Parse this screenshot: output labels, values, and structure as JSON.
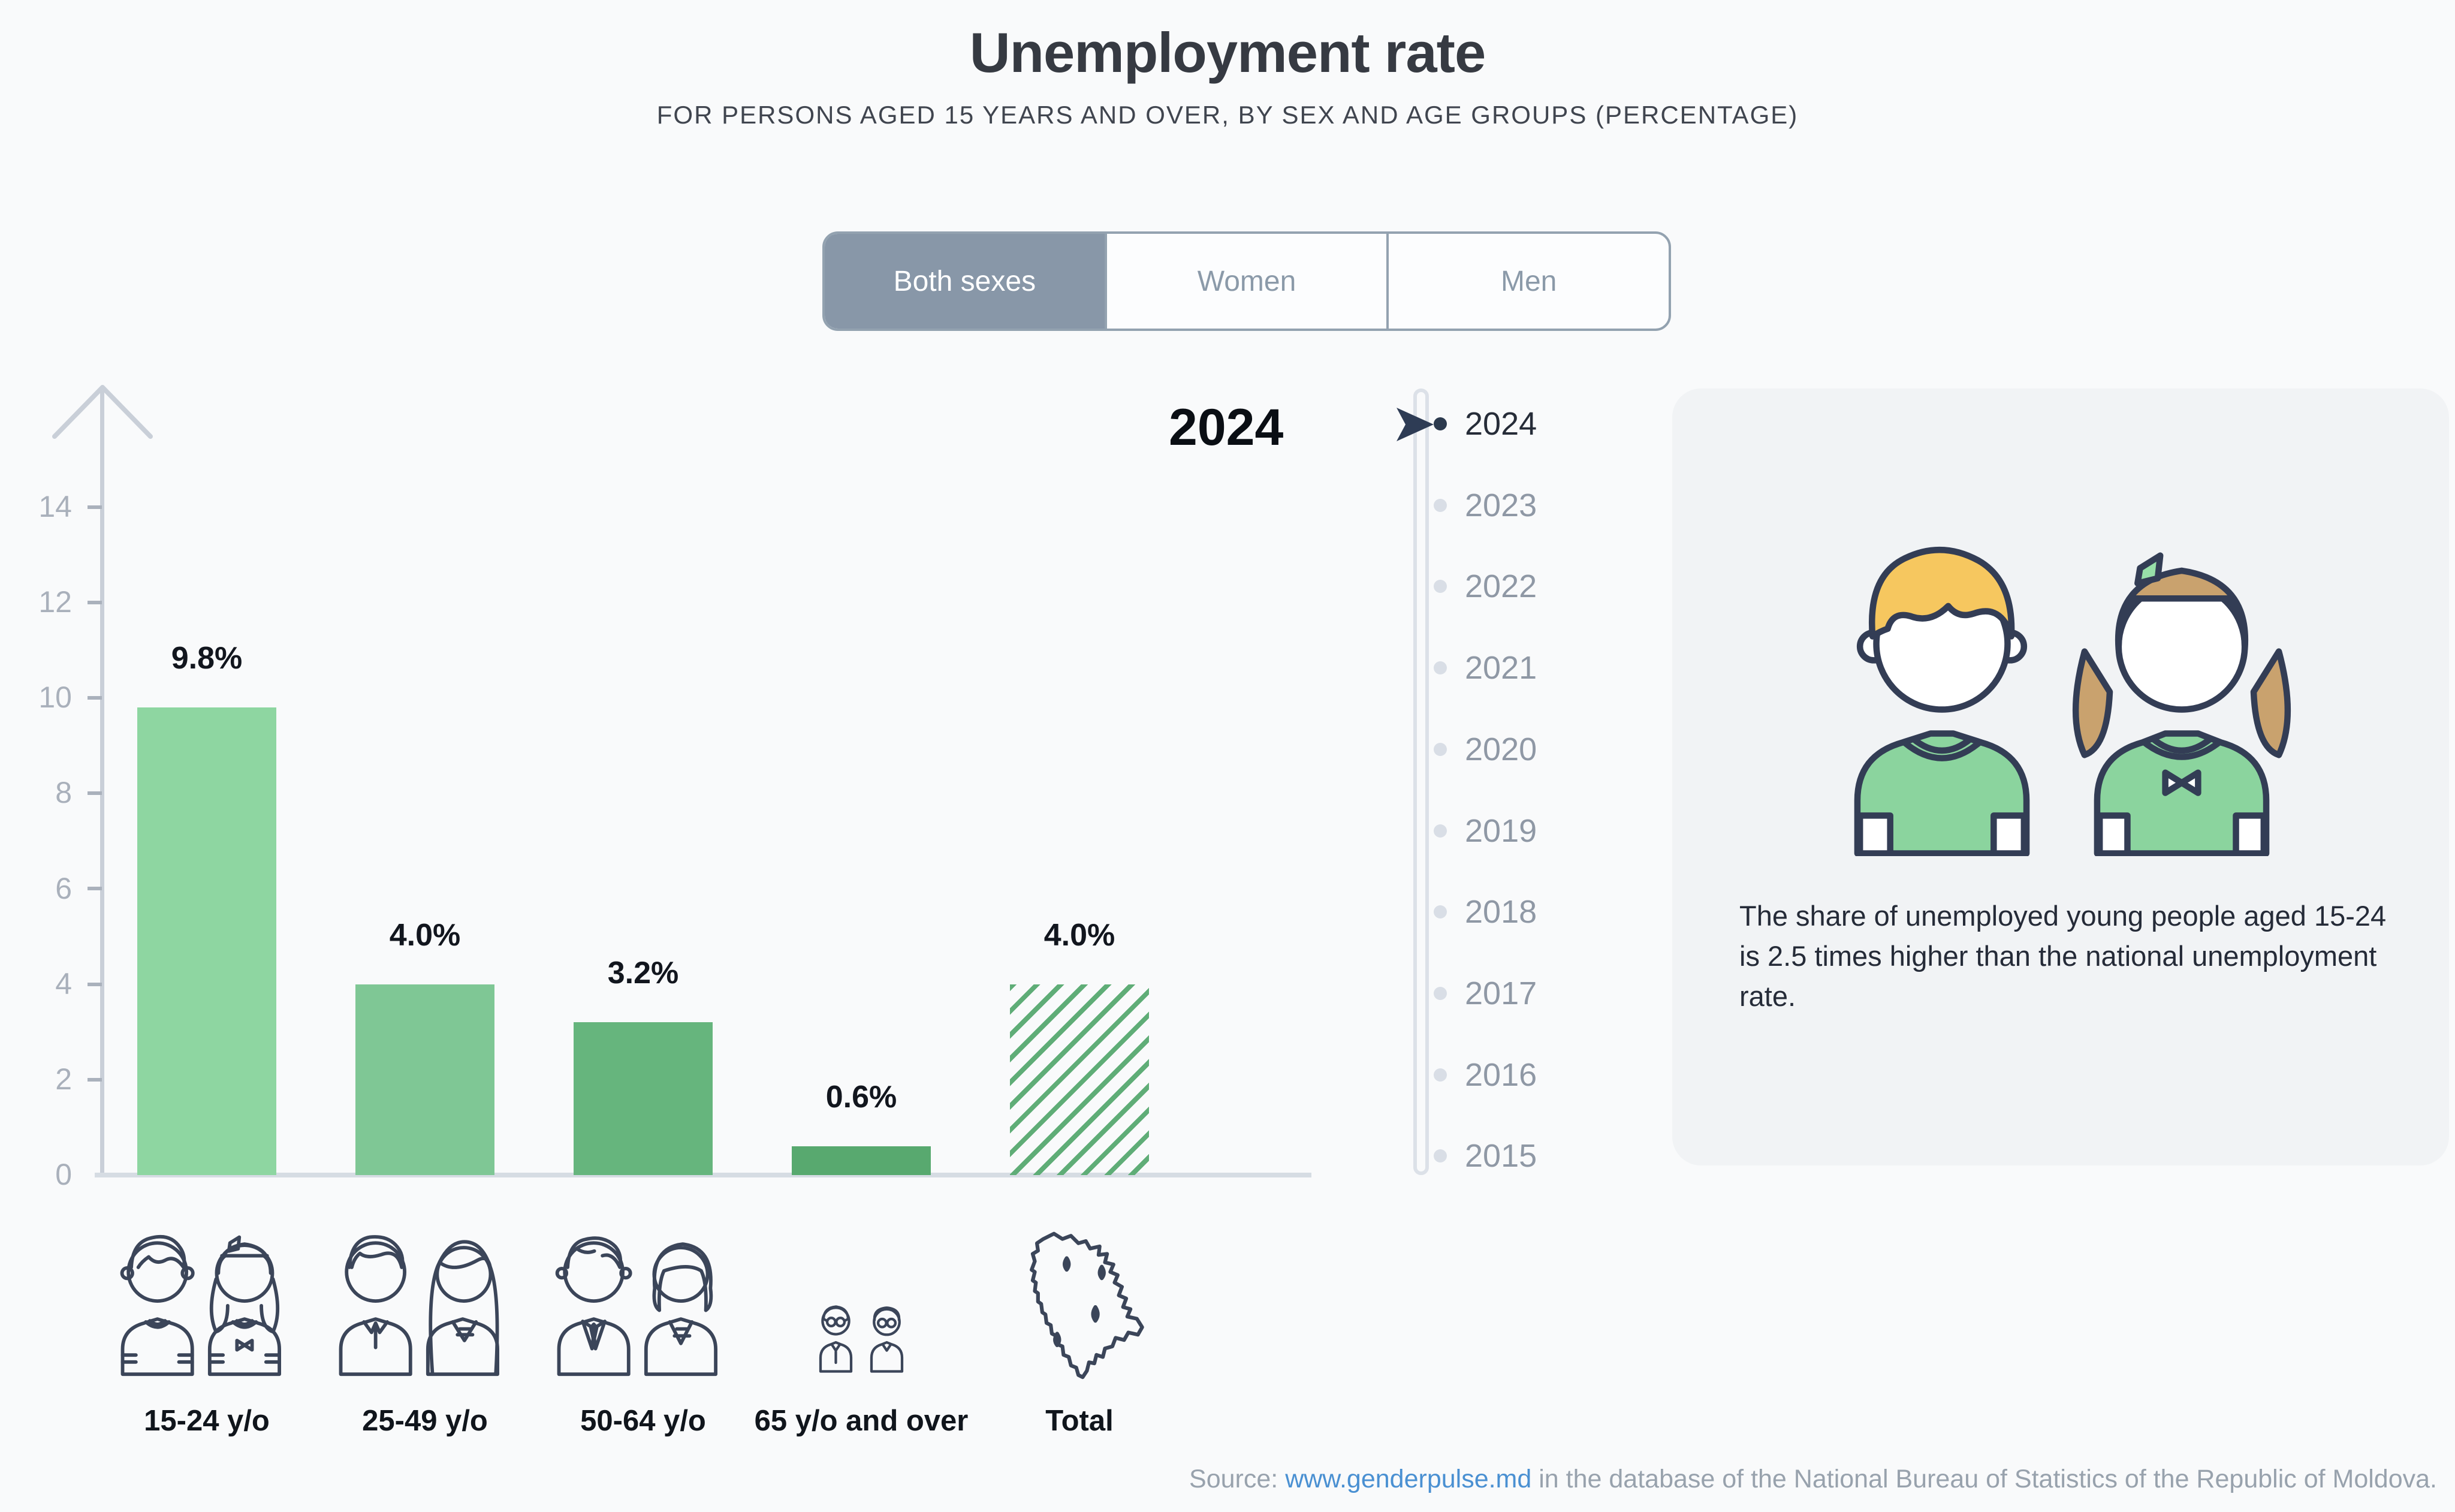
{
  "title": "Unemployment rate",
  "subtitle": "FOR PERSONS AGED 15 YEARS AND OVER, BY SEX AND AGE GROUPS (PERCENTAGE)",
  "tabs": {
    "options": [
      {
        "label": "Both sexes",
        "selected": true
      },
      {
        "label": "Women",
        "selected": false
      },
      {
        "label": "Men",
        "selected": false
      }
    ]
  },
  "chart_data": {
    "type": "bar",
    "year": "2024",
    "categories": [
      "15-24 y/o",
      "25-49 y/o",
      "50-64 y/o",
      "65 y/o and over",
      "Total"
    ],
    "values": [
      9.8,
      4.0,
      3.2,
      0.6,
      4.0
    ],
    "value_labels": [
      "9.8%",
      "4.0%",
      "3.2%",
      "0.6%",
      "4.0%"
    ],
    "yticks": [
      "0",
      "2",
      "4",
      "6",
      "8",
      "10",
      "12",
      "14"
    ],
    "ylim": [
      0,
      15
    ],
    "grid": false,
    "legend": "none",
    "bar_colors": [
      "#8ed6a1",
      "#7fc795",
      "#66b57d",
      "#58a96f",
      "hatched:#5fad77"
    ],
    "category_icons": [
      "young-couple-icon",
      "adult-couple-icon",
      "older-couple-icon",
      "elderly-couple-icon",
      "moldova-map-icon"
    ]
  },
  "timeline": {
    "selected": "2024",
    "years": [
      "2024",
      "2023",
      "2022",
      "2021",
      "2020",
      "2019",
      "2018",
      "2017",
      "2016",
      "2015"
    ]
  },
  "insight": {
    "text": "The share of unemployed young people aged 15-24 is 2.5 times higher than the national unemployment rate.",
    "illustration": "young-couple-illustration"
  },
  "source": {
    "prefix": "Source: ",
    "link": "www.genderpulse.md",
    "suffix": " in the database of the National Bureau of Statistics of the Republic of Moldova."
  },
  "colors": {
    "background": "#f9fafb",
    "bar_green_light": "#8ed6a1",
    "bar_green_2": "#7fc795",
    "bar_green_3": "#66b57d",
    "bar_green_dark": "#58a96f",
    "hatch_green": "#5fad77",
    "tab_selected_bg": "#8897a8",
    "axis_gray": "#c9cfd8",
    "navy": "#2e3c55",
    "link_blue": "#4a90d2"
  }
}
